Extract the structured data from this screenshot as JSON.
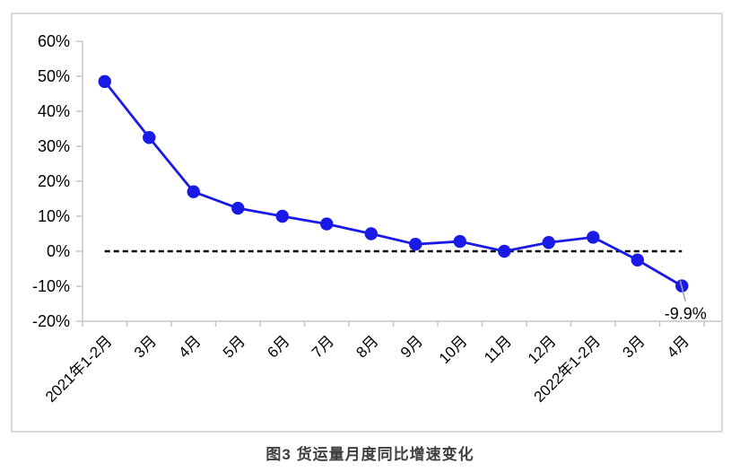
{
  "figure": {
    "caption": "图3  货运量月度同比增速变化"
  },
  "chart_data": {
    "type": "line",
    "title": "图3 货运量月度同比增速变化",
    "categories": [
      "2021年1-2月",
      "3月",
      "4月",
      "5月",
      "6月",
      "7月",
      "8月",
      "9月",
      "10月",
      "11月",
      "12月",
      "2022年1-2月",
      "3月",
      "4月"
    ],
    "series": [
      {
        "name": "货运量月度同比增速",
        "values": [
          48.5,
          32.5,
          17.0,
          12.3,
          10.0,
          7.8,
          5.0,
          2.0,
          2.8,
          0.0,
          2.5,
          4.0,
          -2.5,
          -9.9
        ]
      }
    ],
    "xlabel": "",
    "ylabel": "",
    "ylim": [
      -20,
      60
    ],
    "ytick_step": 10,
    "ytick_suffix": "%",
    "grid": false,
    "legend_position": "none",
    "zero_line": {
      "style": "dashed",
      "color": "#000000",
      "value": 0
    },
    "annotation": {
      "text": "-9.9%",
      "index": 13
    },
    "colors": {
      "line": "#1a1ae6",
      "marker": "#1a1ae6",
      "axis": "#c6c6c6",
      "frame": "#d9d9d9",
      "tick_label": "#000000",
      "leader": "#a6a6a6",
      "background": "#ffffff"
    }
  }
}
